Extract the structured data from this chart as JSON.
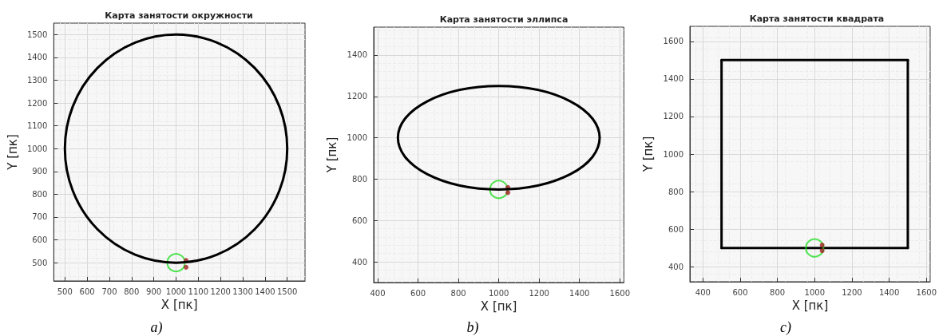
{
  "chart_data": [
    {
      "type": "scatter",
      "title": "Карта занятости окружности",
      "xlabel": "X [пк]",
      "ylabel": "Y [пк]",
      "annotations": [
        "a)"
      ],
      "xlim": [
        450,
        1580
      ],
      "ylim": [
        420,
        1550
      ],
      "xticks": [
        500,
        600,
        700,
        800,
        900,
        1000,
        1100,
        1200,
        1300,
        1400,
        1500
      ],
      "yticks": [
        500,
        600,
        700,
        800,
        900,
        1000,
        1100,
        1200,
        1300,
        1400,
        1500
      ],
      "grid": true,
      "marker": "circle",
      "series": [
        {
          "color": "#22dd22",
          "x": [
            1000
          ],
          "values": [
            500
          ]
        },
        {
          "color": "#a02020",
          "x": [
            1045,
            1045
          ],
          "values": [
            510,
            480
          ]
        }
      ]
    },
    {
      "type": "scatter",
      "title": "Карта занятости эллипса",
      "xlabel": "X [пк]",
      "ylabel": "Y [пк]",
      "annotations": [
        "b)"
      ],
      "xlim": [
        380,
        1620
      ],
      "ylim": [
        300,
        1535
      ],
      "xticks": [
        400,
        600,
        800,
        1000,
        1200,
        1400,
        1600
      ],
      "yticks": [
        400,
        600,
        800,
        1000,
        1200,
        1400
      ],
      "grid": true,
      "marker": "circle",
      "series": [
        {
          "color": "#22dd22",
          "x": [
            1000
          ],
          "values": [
            750
          ]
        },
        {
          "color": "#a02020",
          "x": [
            1045,
            1045
          ],
          "values": [
            760,
            735
          ]
        }
      ]
    },
    {
      "type": "line",
      "title": "Карта занятости квадрата",
      "xlabel": "X [пк]",
      "ylabel": "Y [пк]",
      "annotations": [
        "c)"
      ],
      "xlim": [
        330,
        1620
      ],
      "ylim": [
        320,
        1680
      ],
      "xticks": [
        400,
        600,
        800,
        1000,
        1200,
        1400,
        1600
      ],
      "yticks": [
        400,
        600,
        800,
        1000,
        1200,
        1400,
        1600
      ],
      "grid": true,
      "marker": "none",
      "line_style": "solid",
      "series": [
        {
          "color": "#000000",
          "x": [
            500,
            1500
          ],
          "values": [
            500,
            500
          ]
        },
        {
          "color": "#000000",
          "x": [
            500,
            1500
          ],
          "values": [
            1500,
            1500
          ]
        },
        {
          "color": "#000000",
          "x": [
            500,
            500
          ],
          "values": [
            500,
            1500
          ]
        },
        {
          "color": "#000000",
          "x": [
            1500,
            1500
          ],
          "values": [
            500,
            1500
          ]
        },
        {
          "type": "scatter",
          "marker": "circle",
          "color": "#22dd22",
          "x": [
            1000
          ],
          "values": [
            500
          ]
        },
        {
          "type": "scatter",
          "marker": "circle",
          "color": "#a02020",
          "x": [
            1040,
            1040
          ],
          "values": [
            515,
            485
          ]
        }
      ]
    }
  ]
}
